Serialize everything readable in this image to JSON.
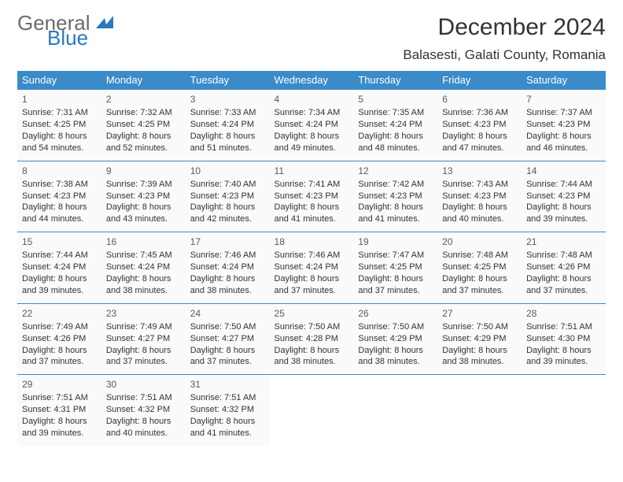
{
  "brand": {
    "word1": "General",
    "word2": "Blue"
  },
  "title": "December 2024",
  "location": "Balasesti, Galati County, Romania",
  "colors": {
    "header_bg": "#3b8bc9",
    "header_fg": "#ffffff",
    "row_sep": "#3b8bc9",
    "cell_bg": "#fafafa",
    "page_bg": "#ffffff",
    "text": "#333333",
    "logo_gray": "#6a6a6a",
    "logo_blue": "#2b79bd"
  },
  "day_headers": [
    "Sunday",
    "Monday",
    "Tuesday",
    "Wednesday",
    "Thursday",
    "Friday",
    "Saturday"
  ],
  "weeks": [
    [
      {
        "n": "1",
        "sr": "Sunrise: 7:31 AM",
        "ss": "Sunset: 4:25 PM",
        "dl": "Daylight: 8 hours and 54 minutes."
      },
      {
        "n": "2",
        "sr": "Sunrise: 7:32 AM",
        "ss": "Sunset: 4:25 PM",
        "dl": "Daylight: 8 hours and 52 minutes."
      },
      {
        "n": "3",
        "sr": "Sunrise: 7:33 AM",
        "ss": "Sunset: 4:24 PM",
        "dl": "Daylight: 8 hours and 51 minutes."
      },
      {
        "n": "4",
        "sr": "Sunrise: 7:34 AM",
        "ss": "Sunset: 4:24 PM",
        "dl": "Daylight: 8 hours and 49 minutes."
      },
      {
        "n": "5",
        "sr": "Sunrise: 7:35 AM",
        "ss": "Sunset: 4:24 PM",
        "dl": "Daylight: 8 hours and 48 minutes."
      },
      {
        "n": "6",
        "sr": "Sunrise: 7:36 AM",
        "ss": "Sunset: 4:23 PM",
        "dl": "Daylight: 8 hours and 47 minutes."
      },
      {
        "n": "7",
        "sr": "Sunrise: 7:37 AM",
        "ss": "Sunset: 4:23 PM",
        "dl": "Daylight: 8 hours and 46 minutes."
      }
    ],
    [
      {
        "n": "8",
        "sr": "Sunrise: 7:38 AM",
        "ss": "Sunset: 4:23 PM",
        "dl": "Daylight: 8 hours and 44 minutes."
      },
      {
        "n": "9",
        "sr": "Sunrise: 7:39 AM",
        "ss": "Sunset: 4:23 PM",
        "dl": "Daylight: 8 hours and 43 minutes."
      },
      {
        "n": "10",
        "sr": "Sunrise: 7:40 AM",
        "ss": "Sunset: 4:23 PM",
        "dl": "Daylight: 8 hours and 42 minutes."
      },
      {
        "n": "11",
        "sr": "Sunrise: 7:41 AM",
        "ss": "Sunset: 4:23 PM",
        "dl": "Daylight: 8 hours and 41 minutes."
      },
      {
        "n": "12",
        "sr": "Sunrise: 7:42 AM",
        "ss": "Sunset: 4:23 PM",
        "dl": "Daylight: 8 hours and 41 minutes."
      },
      {
        "n": "13",
        "sr": "Sunrise: 7:43 AM",
        "ss": "Sunset: 4:23 PM",
        "dl": "Daylight: 8 hours and 40 minutes."
      },
      {
        "n": "14",
        "sr": "Sunrise: 7:44 AM",
        "ss": "Sunset: 4:23 PM",
        "dl": "Daylight: 8 hours and 39 minutes."
      }
    ],
    [
      {
        "n": "15",
        "sr": "Sunrise: 7:44 AM",
        "ss": "Sunset: 4:24 PM",
        "dl": "Daylight: 8 hours and 39 minutes."
      },
      {
        "n": "16",
        "sr": "Sunrise: 7:45 AM",
        "ss": "Sunset: 4:24 PM",
        "dl": "Daylight: 8 hours and 38 minutes."
      },
      {
        "n": "17",
        "sr": "Sunrise: 7:46 AM",
        "ss": "Sunset: 4:24 PM",
        "dl": "Daylight: 8 hours and 38 minutes."
      },
      {
        "n": "18",
        "sr": "Sunrise: 7:46 AM",
        "ss": "Sunset: 4:24 PM",
        "dl": "Daylight: 8 hours and 37 minutes."
      },
      {
        "n": "19",
        "sr": "Sunrise: 7:47 AM",
        "ss": "Sunset: 4:25 PM",
        "dl": "Daylight: 8 hours and 37 minutes."
      },
      {
        "n": "20",
        "sr": "Sunrise: 7:48 AM",
        "ss": "Sunset: 4:25 PM",
        "dl": "Daylight: 8 hours and 37 minutes."
      },
      {
        "n": "21",
        "sr": "Sunrise: 7:48 AM",
        "ss": "Sunset: 4:26 PM",
        "dl": "Daylight: 8 hours and 37 minutes."
      }
    ],
    [
      {
        "n": "22",
        "sr": "Sunrise: 7:49 AM",
        "ss": "Sunset: 4:26 PM",
        "dl": "Daylight: 8 hours and 37 minutes."
      },
      {
        "n": "23",
        "sr": "Sunrise: 7:49 AM",
        "ss": "Sunset: 4:27 PM",
        "dl": "Daylight: 8 hours and 37 minutes."
      },
      {
        "n": "24",
        "sr": "Sunrise: 7:50 AM",
        "ss": "Sunset: 4:27 PM",
        "dl": "Daylight: 8 hours and 37 minutes."
      },
      {
        "n": "25",
        "sr": "Sunrise: 7:50 AM",
        "ss": "Sunset: 4:28 PM",
        "dl": "Daylight: 8 hours and 38 minutes."
      },
      {
        "n": "26",
        "sr": "Sunrise: 7:50 AM",
        "ss": "Sunset: 4:29 PM",
        "dl": "Daylight: 8 hours and 38 minutes."
      },
      {
        "n": "27",
        "sr": "Sunrise: 7:50 AM",
        "ss": "Sunset: 4:29 PM",
        "dl": "Daylight: 8 hours and 38 minutes."
      },
      {
        "n": "28",
        "sr": "Sunrise: 7:51 AM",
        "ss": "Sunset: 4:30 PM",
        "dl": "Daylight: 8 hours and 39 minutes."
      }
    ],
    [
      {
        "n": "29",
        "sr": "Sunrise: 7:51 AM",
        "ss": "Sunset: 4:31 PM",
        "dl": "Daylight: 8 hours and 39 minutes."
      },
      {
        "n": "30",
        "sr": "Sunrise: 7:51 AM",
        "ss": "Sunset: 4:32 PM",
        "dl": "Daylight: 8 hours and 40 minutes."
      },
      {
        "n": "31",
        "sr": "Sunrise: 7:51 AM",
        "ss": "Sunset: 4:32 PM",
        "dl": "Daylight: 8 hours and 41 minutes."
      },
      null,
      null,
      null,
      null
    ]
  ]
}
